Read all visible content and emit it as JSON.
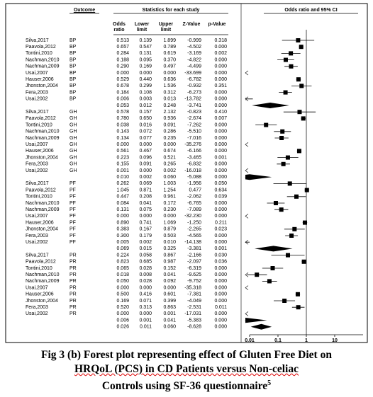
{
  "chart_data": {
    "type": "forest",
    "outcome_header": "Outcome",
    "stats_header": "Statistics for each study",
    "plot_header": "Odds ratio and 95% CI",
    "columns": [
      "Odds ratio",
      "Lower limit",
      "Upper limit",
      "Z-Value",
      "p-Value"
    ],
    "xlim": [
      0.01,
      100
    ],
    "xticks": [
      0.01,
      0.1,
      1,
      10
    ],
    "log_scale": true,
    "rows": [
      {
        "study": "Silva,2017",
        "outcome": "BP",
        "values": [
          "0.513",
          "0.139",
          "1.899",
          "-0.999",
          "0.318"
        ]
      },
      {
        "study": "Paavola,2012",
        "outcome": "BP",
        "values": [
          "0.657",
          "0.547",
          "0.789",
          "-4.502",
          "0.000"
        ]
      },
      {
        "study": "Tontini,2010",
        "outcome": "BP",
        "values": [
          "0.284",
          "0.131",
          "0.619",
          "-3.169",
          "0.002"
        ]
      },
      {
        "study": "Nachman,2010",
        "outcome": "BP",
        "values": [
          "0.188",
          "0.095",
          "0.370",
          "-4.822",
          "0.000"
        ]
      },
      {
        "study": "Nachman,2009",
        "outcome": "BP",
        "values": [
          "0.290",
          "0.169",
          "0.497",
          "-4.499",
          "0.000"
        ]
      },
      {
        "study": "Usai,2007",
        "outcome": "BP",
        "values": [
          "0.000",
          "0.000",
          "0.000",
          "-33.699",
          "0.000"
        ]
      },
      {
        "study": "Hauser,2006",
        "outcome": "BP",
        "values": [
          "0.529",
          "0.440",
          "0.636",
          "-6.782",
          "0.000"
        ]
      },
      {
        "study": "Jhonston,2004",
        "outcome": "BP",
        "values": [
          "0.678",
          "0.299",
          "1.536",
          "-0.932",
          "0.351"
        ]
      },
      {
        "study": "Fera,2003",
        "outcome": "BP",
        "values": [
          "0.184",
          "0.108",
          "0.312",
          "-6.273",
          "0.000"
        ]
      },
      {
        "study": "Usai,2002",
        "outcome": "BP",
        "values": [
          "0.006",
          "0.003",
          "0.013",
          "-13.782",
          "0.000"
        ]
      },
      {
        "summary": true,
        "values": [
          "0.053",
          "0.012",
          "0.248",
          "-3.741",
          "0.000"
        ]
      },
      {
        "study": "Silva,2017",
        "outcome": "GH",
        "values": [
          "0.578",
          "0.157",
          "2.132",
          "-0.823",
          "0.410"
        ]
      },
      {
        "study": "Paavola,2012",
        "outcome": "GH",
        "values": [
          "0.780",
          "0.650",
          "0.936",
          "-2.674",
          "0.007"
        ]
      },
      {
        "study": "Tontini,2010",
        "outcome": "GH",
        "values": [
          "0.038",
          "0.016",
          "0.091",
          "-7.262",
          "0.000"
        ]
      },
      {
        "study": "Nachman,2010",
        "outcome": "GH",
        "values": [
          "0.143",
          "0.072",
          "0.286",
          "-5.510",
          "0.000"
        ]
      },
      {
        "study": "Nachman,2009",
        "outcome": "GH",
        "values": [
          "0.134",
          "0.077",
          "0.235",
          "-7.016",
          "0.000"
        ]
      },
      {
        "study": "Usai,2007",
        "outcome": "GH",
        "values": [
          "0.000",
          "0.000",
          "0.000",
          "-35.276",
          "0.000"
        ]
      },
      {
        "study": "Hauser,2006",
        "outcome": "GH",
        "values": [
          "0.561",
          "0.467",
          "0.674",
          "-6.166",
          "0.000"
        ]
      },
      {
        "study": "Jhonston,2004",
        "outcome": "GH",
        "values": [
          "0.223",
          "0.096",
          "0.521",
          "-3.465",
          "0.001"
        ]
      },
      {
        "study": "Fera,2003",
        "outcome": "GH",
        "values": [
          "0.155",
          "0.091",
          "0.265",
          "-6.832",
          "0.000"
        ]
      },
      {
        "study": "Usai,2002",
        "outcome": "GH",
        "values": [
          "0.001",
          "0.000",
          "0.002",
          "-16.018",
          "0.000"
        ]
      },
      {
        "summary": true,
        "values": [
          "0.010",
          "0.002",
          "0.060",
          "-5.088",
          "0.000"
        ]
      },
      {
        "study": "Silva,2017",
        "outcome": "PF",
        "values": [
          "0.262",
          "0.069",
          "1.003",
          "-1.956",
          "0.050"
        ]
      },
      {
        "study": "Paavola,2012",
        "outcome": "PF",
        "values": [
          "1.045",
          "0.871",
          "1.254",
          "0.477",
          "0.634"
        ]
      },
      {
        "study": "Tontini,2010",
        "outcome": "PF",
        "values": [
          "0.447",
          "0.208",
          "0.961",
          "-2.062",
          "0.039"
        ]
      },
      {
        "study": "Nachman,2010",
        "outcome": "PF",
        "values": [
          "0.084",
          "0.041",
          "0.172",
          "-6.765",
          "0.000"
        ]
      },
      {
        "study": "Nachman,2009",
        "outcome": "PF",
        "values": [
          "0.131",
          "0.075",
          "0.230",
          "-7.089",
          "0.000"
        ]
      },
      {
        "study": "Usai,2007",
        "outcome": "PF",
        "values": [
          "0.000",
          "0.000",
          "0.000",
          "-32.230",
          "0.000"
        ]
      },
      {
        "study": "Hauser,2006",
        "outcome": "PF",
        "values": [
          "0.890",
          "0.741",
          "1.069",
          "-1.250",
          "0.211"
        ]
      },
      {
        "study": "Jhonston,2004",
        "outcome": "PF",
        "values": [
          "0.383",
          "0.167",
          "0.879",
          "-2.265",
          "0.023"
        ]
      },
      {
        "study": "Fera,2003",
        "outcome": "PF",
        "values": [
          "0.300",
          "0.179",
          "0.503",
          "-4.565",
          "0.000"
        ]
      },
      {
        "study": "Usai,2002",
        "outcome": "PF",
        "values": [
          "0.005",
          "0.002",
          "0.010",
          "-14.138",
          "0.000"
        ]
      },
      {
        "summary": true,
        "values": [
          "0.069",
          "0.015",
          "0.325",
          "-3.381",
          "0.001"
        ]
      },
      {
        "study": "Silva,2017",
        "outcome": "PR",
        "values": [
          "0.224",
          "0.058",
          "0.867",
          "-2.166",
          "0.030"
        ]
      },
      {
        "study": "Paavola,2012",
        "outcome": "PR",
        "values": [
          "0.823",
          "0.685",
          "0.987",
          "-2.097",
          "0.036"
        ]
      },
      {
        "study": "Tontini,2010",
        "outcome": "PR",
        "values": [
          "0.065",
          "0.028",
          "0.152",
          "-6.319",
          "0.000"
        ]
      },
      {
        "study": "Nachman,2010",
        "outcome": "PR",
        "values": [
          "0.018",
          "0.008",
          "0.041",
          "-9.625",
          "0.000"
        ]
      },
      {
        "study": "Nachman,2009",
        "outcome": "PR",
        "values": [
          "0.050",
          "0.028",
          "0.092",
          "-9.752",
          "0.000"
        ]
      },
      {
        "study": "Usai,2007",
        "outcome": "PR",
        "values": [
          "0.000",
          "0.000",
          "0.000",
          "-35.318",
          "0.000"
        ]
      },
      {
        "study": "Hauser,2006",
        "outcome": "PR",
        "values": [
          "0.500",
          "0.416",
          "0.601",
          "-7.381",
          "0.000"
        ]
      },
      {
        "study": "Jhonston,2004",
        "outcome": "PR",
        "values": [
          "0.169",
          "0.071",
          "0.399",
          "-4.049",
          "0.000"
        ]
      },
      {
        "study": "Fera,2003",
        "outcome": "PR",
        "values": [
          "0.520",
          "0.313",
          "0.863",
          "-2.531",
          "0.011"
        ]
      },
      {
        "study": "Usai,2002",
        "outcome": "PR",
        "values": [
          "0.000",
          "0.000",
          "0.001",
          "-17.031",
          "0.000"
        ]
      },
      {
        "summary": true,
        "values": [
          "0.006",
          "0.001",
          "0.041",
          "-5.383",
          "0.000"
        ]
      },
      {
        "summary": true,
        "values": [
          "0.026",
          "0.011",
          "0.060",
          "-8.628",
          "0.000"
        ]
      }
    ],
    "caption_lines": [
      "Fig 3 (b) Forest plot representing effect of Gluten Free Diet on",
      "HRQoL (PCS) in CD Patients versus Non-celiac",
      "Controls using SF-36 questionnaire"
    ],
    "caption_sup": "5"
  }
}
